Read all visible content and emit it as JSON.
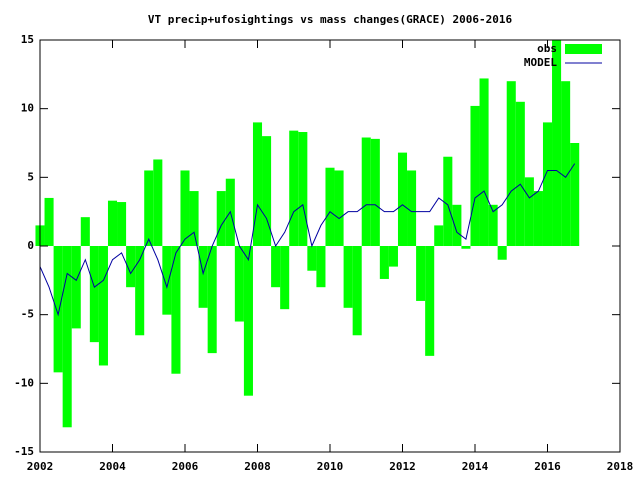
{
  "chart_data": {
    "type": "bar",
    "title": "VT precip+ufosightings vs mass changes(GRACE) 2006-2016",
    "x": [
      2002,
      2002.25,
      2002.5,
      2002.75,
      2003,
      2003.25,
      2003.5,
      2003.75,
      2004,
      2004.25,
      2004.5,
      2004.75,
      2005,
      2005.25,
      2005.5,
      2005.75,
      2006,
      2006.25,
      2006.5,
      2006.75,
      2007,
      2007.25,
      2007.5,
      2007.75,
      2008,
      2008.25,
      2008.5,
      2008.75,
      2009,
      2009.25,
      2009.5,
      2009.75,
      2010,
      2010.25,
      2010.5,
      2010.75,
      2011,
      2011.25,
      2011.5,
      2011.75,
      2012,
      2012.25,
      2012.5,
      2012.75,
      2013,
      2013.25,
      2013.5,
      2013.75,
      2014,
      2014.25,
      2014.5,
      2014.75,
      2015,
      2015.25,
      2015.5,
      2015.75,
      2016,
      2016.25,
      2016.5,
      2016.75
    ],
    "bar_width": 0.25,
    "series": [
      {
        "name": "obs",
        "type": "bar",
        "color": "#00ff00",
        "values": [
          1.5,
          3.5,
          -9.2,
          -13.2,
          -6,
          2.1,
          -7,
          -8.7,
          3.3,
          3.2,
          -3,
          -6.5,
          5.5,
          6.3,
          -5,
          -9.3,
          5.5,
          4,
          -4.5,
          -7.8,
          4,
          4.9,
          -5.5,
          -10.9,
          9,
          8,
          -3,
          -4.6,
          8.4,
          8.3,
          -1.8,
          -3,
          5.7,
          5.5,
          -4.5,
          -6.5,
          7.9,
          7.8,
          -2.4,
          -1.5,
          6.8,
          5.5,
          -4,
          -8,
          1.5,
          6.5,
          3,
          -0.2,
          10.2,
          12.2,
          3,
          -1,
          12,
          10.5,
          5,
          4,
          9,
          15,
          12,
          7.5
        ]
      },
      {
        "name": "MODEL",
        "type": "line",
        "color": "#0000a0",
        "values": [
          -1.5,
          -3,
          -5,
          -2,
          -2.5,
          -1,
          -3,
          -2.5,
          -1,
          -0.5,
          -2,
          -1,
          0.5,
          -1,
          -3,
          -0.5,
          0.5,
          1,
          -2,
          0,
          1.5,
          2.5,
          0,
          -1,
          3,
          2,
          0,
          1,
          2.5,
          3,
          0,
          1.5,
          2.5,
          2,
          2.5,
          2.5,
          3,
          3,
          2.5,
          2.5,
          3,
          2.5,
          2.5,
          2.5,
          3.5,
          3,
          1,
          0.5,
          3.5,
          4,
          2.5,
          3,
          4,
          4.5,
          3.5,
          4,
          5.5,
          5.5,
          5,
          6
        ]
      }
    ],
    "xlim": [
      2002,
      2018
    ],
    "xticks": [
      2002,
      2004,
      2006,
      2008,
      2010,
      2012,
      2014,
      2016,
      2018
    ],
    "ylim": [
      -15,
      15
    ],
    "yticks": [
      -15,
      -10,
      -5,
      0,
      5,
      10,
      15
    ],
    "legend": "top-right"
  }
}
